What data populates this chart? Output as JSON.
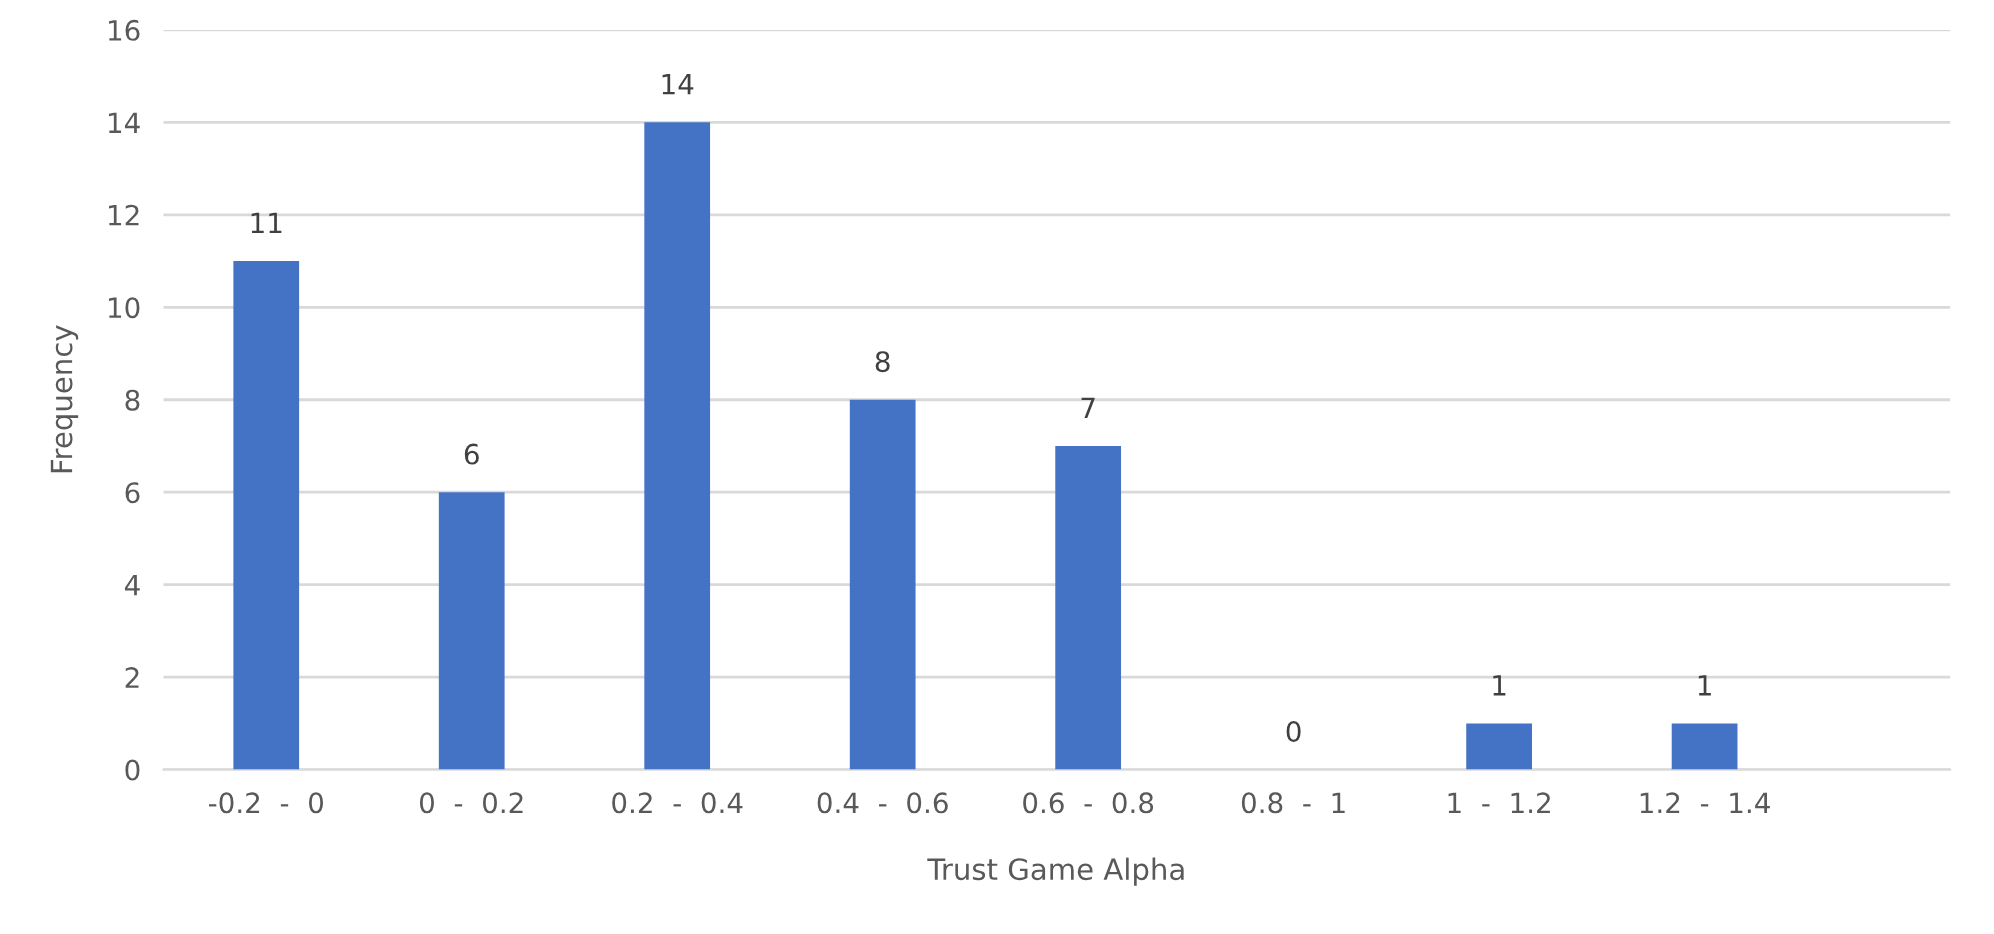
{
  "chart_data": {
    "type": "bar",
    "xlabel": "Trust Game Alpha",
    "ylabel": "Frequency",
    "categories": [
      "-0.2  -  0",
      "0  -  0.2",
      "0.2  -  0.4",
      "0.4  -  0.6",
      "0.6  -  0.8",
      "0.8  -  1",
      "1  -  1.2",
      "1.2  -  1.4"
    ],
    "values": [
      11,
      6,
      14,
      8,
      7,
      0,
      1,
      1
    ],
    "color": "#4472c4",
    "ylim": [
      0,
      16
    ],
    "yticks": [
      0,
      2,
      4,
      6,
      8,
      10,
      12,
      14,
      16
    ],
    "grid": "y",
    "data_labels": true
  }
}
